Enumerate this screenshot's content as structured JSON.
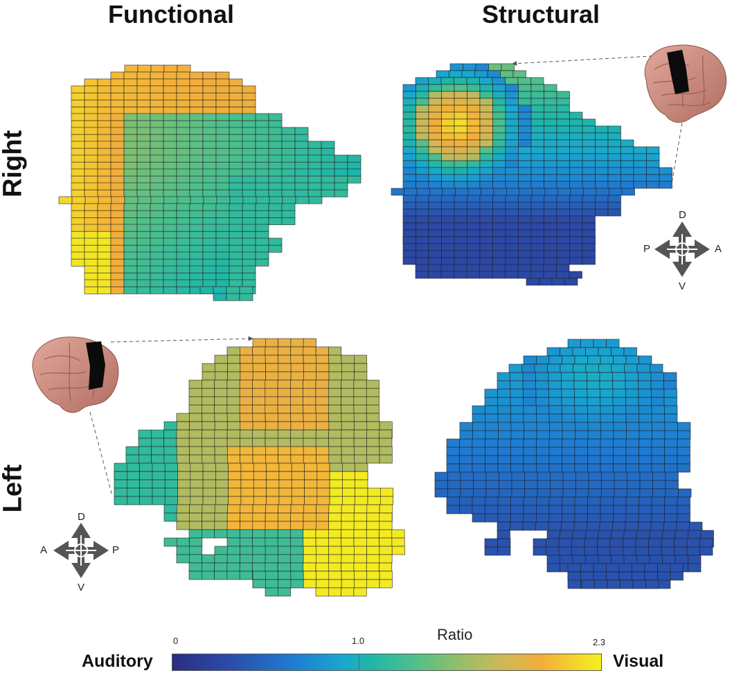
{
  "columns": {
    "functional": "Functional",
    "structural": "Structural"
  },
  "rows": {
    "right": "Right",
    "left": "Left"
  },
  "colorbar": {
    "title": "Ratio",
    "left_label": "Auditory",
    "right_label": "Visual",
    "ticks": {
      "min": "0",
      "mid": "1.0",
      "max": "2.3"
    }
  },
  "compass_right": {
    "d": "D",
    "v": "V",
    "p": "P",
    "a": "A"
  },
  "compass_left": {
    "d": "D",
    "v": "V",
    "a": "A",
    "p": "P"
  },
  "palette": [
    "#2c2d7f",
    "#2c48a6",
    "#1f7bd2",
    "#19a8cf",
    "#1fb6a8",
    "#4dbf8d",
    "#8dbf6a",
    "#c9b95a",
    "#f2ae3b",
    "#f4d52c",
    "#f3ef1f"
  ],
  "icons": [
    "brain-icon",
    "compass-icon",
    "connector-arrow"
  ]
}
